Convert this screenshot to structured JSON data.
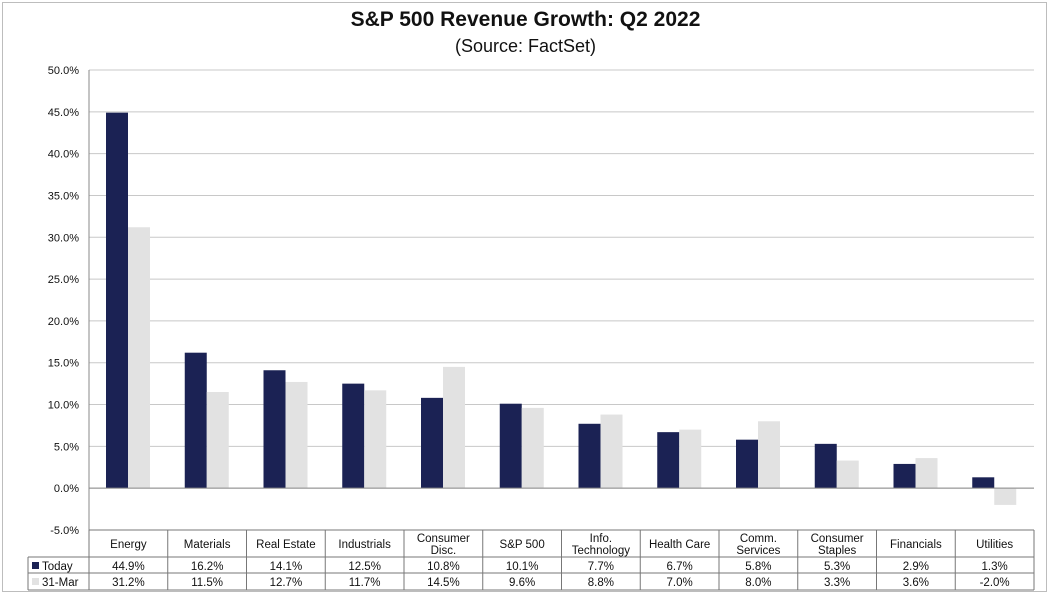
{
  "chart_data": {
    "type": "bar",
    "title": "S&P 500 Revenue Growth: Q2 2022",
    "subtitle": "(Source: FactSet)",
    "categories": [
      [
        "Energy"
      ],
      [
        "Materials"
      ],
      [
        "Real Estate"
      ],
      [
        "Industrials"
      ],
      [
        "Consumer",
        "Disc."
      ],
      [
        "S&P 500"
      ],
      [
        "Info.",
        "Technology"
      ],
      [
        "Health Care"
      ],
      [
        "Comm.",
        "Services"
      ],
      [
        "Consumer",
        "Staples"
      ],
      [
        "Financials"
      ],
      [
        "Utilities"
      ]
    ],
    "series": [
      {
        "name": "Today",
        "color": "#1b2254",
        "values": [
          44.9,
          16.2,
          14.1,
          12.5,
          10.8,
          10.1,
          7.7,
          6.7,
          5.8,
          5.3,
          2.9,
          1.3
        ],
        "labels": [
          "44.9%",
          "16.2%",
          "14.1%",
          "12.5%",
          "10.8%",
          "10.1%",
          "7.7%",
          "6.7%",
          "5.8%",
          "5.3%",
          "2.9%",
          "1.3%"
        ]
      },
      {
        "name": "31-Mar",
        "color": "#e2e2e2",
        "values": [
          31.2,
          11.5,
          12.7,
          11.7,
          14.5,
          9.6,
          8.8,
          7.0,
          8.0,
          3.3,
          3.6,
          -2.0
        ],
        "labels": [
          "31.2%",
          "11.5%",
          "12.7%",
          "11.7%",
          "14.5%",
          "9.6%",
          "8.8%",
          "7.0%",
          "8.0%",
          "3.3%",
          "3.6%",
          "-2.0%"
        ]
      }
    ],
    "ylim": [
      -5,
      50
    ],
    "yticks": [
      50,
      45,
      40,
      35,
      30,
      25,
      20,
      15,
      10,
      5,
      0,
      -5
    ],
    "ytick_labels": [
      "50.0%",
      "45.0%",
      "40.0%",
      "35.0%",
      "30.0%",
      "25.0%",
      "20.0%",
      "15.0%",
      "10.0%",
      "5.0%",
      "0.0%",
      "-5.0%"
    ],
    "grid": true,
    "legend": "data-table"
  }
}
